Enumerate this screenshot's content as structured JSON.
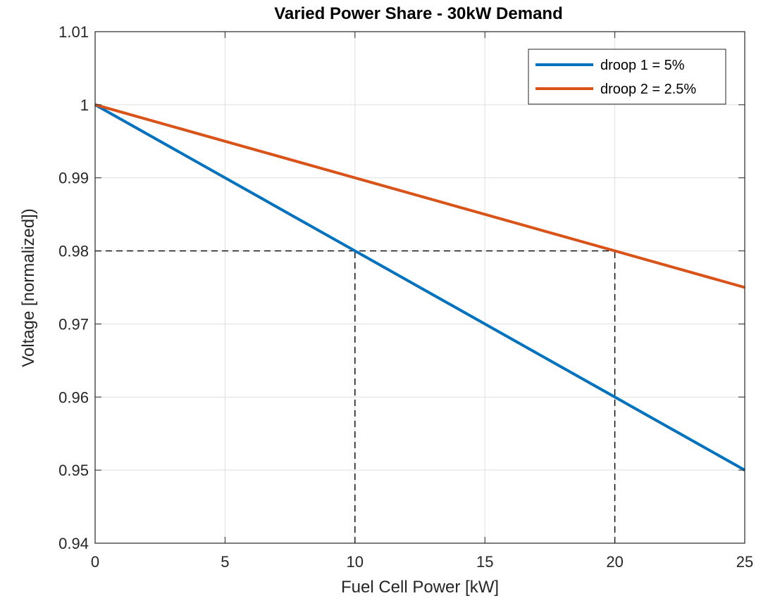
{
  "chart_data": {
    "type": "line",
    "title": "Varied Power Share - 30kW Demand",
    "xlabel": "Fuel Cell Power [kW]",
    "ylabel": "Voltage [normalized])",
    "xlim": [
      0,
      25
    ],
    "ylim": [
      0.94,
      1.01
    ],
    "xticks": [
      0,
      5,
      10,
      15,
      20,
      25
    ],
    "xtick_labels": [
      "0",
      "5",
      "10",
      "15",
      "20",
      "25"
    ],
    "yticks": [
      0.94,
      0.95,
      0.96,
      0.97,
      0.98,
      0.99,
      1.0,
      1.01
    ],
    "ytick_labels": [
      "0.94",
      "0.95",
      "0.96",
      "0.97",
      "0.98",
      "0.99",
      "1",
      "1.01"
    ],
    "grid": true,
    "legend_position": "top-right",
    "series": [
      {
        "name": "droop 1 = 5%",
        "color": "#0072BD",
        "x": [
          0,
          25
        ],
        "y": [
          1.0,
          0.95
        ]
      },
      {
        "name": "droop 2 = 2.5%",
        "color": "#D95319",
        "x": [
          0,
          25
        ],
        "y": [
          1.0,
          0.975
        ]
      }
    ],
    "reference_lines": [
      {
        "style": "dashed",
        "color": "#000000",
        "x": [
          0,
          20
        ],
        "y": [
          0.98,
          0.98
        ]
      },
      {
        "style": "dashed",
        "color": "#000000",
        "x": [
          10,
          10
        ],
        "y": [
          0.94,
          0.98
        ]
      },
      {
        "style": "dashed",
        "color": "#000000",
        "x": [
          20,
          20
        ],
        "y": [
          0.94,
          0.98
        ]
      }
    ]
  }
}
